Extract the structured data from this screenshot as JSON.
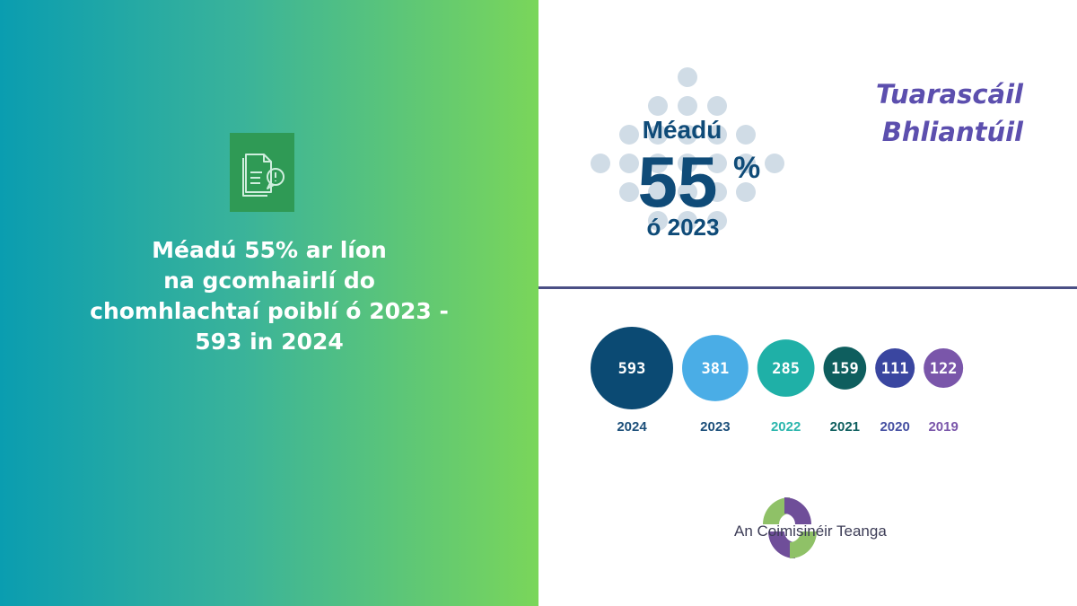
{
  "left": {
    "headline_lines": [
      "Méadú 55% ar líon",
      "na gcomhairlí do",
      "chomhlachtaí poiblí ó 2023 -",
      "593 in 2024"
    ],
    "icon": "document-alert-icon"
  },
  "right": {
    "report_title_lines": [
      "Tuarascáil",
      "Bhliantúil"
    ],
    "stat": {
      "label_top": "Méadú",
      "value": "55",
      "unit": "%",
      "label_bottom": "ó 2023"
    },
    "logo_text": "An Coimisinéir Teanga"
  },
  "colors": {
    "gradient_start": "#0a9db0",
    "gradient_end": "#7ad65a",
    "title_purple": "#5c4fae",
    "stat_navy": "#0f4b78",
    "dot_gray": "#c8d6e2"
  },
  "chart_data": {
    "type": "bubble",
    "categories": [
      "2024",
      "2023",
      "2022",
      "2021",
      "2020",
      "2019"
    ],
    "values": [
      593,
      381,
      285,
      159,
      111,
      122
    ],
    "bubble_colors": [
      "#0b4a73",
      "#4aade6",
      "#1fb0a7",
      "#0e5e5e",
      "#3a46a0",
      "#7a56aa"
    ],
    "label_colors": [
      "#1c4f7a",
      "#1c4f7a",
      "#2ab6ad",
      "#0e5e5e",
      "#4550a2",
      "#7a56aa"
    ]
  }
}
